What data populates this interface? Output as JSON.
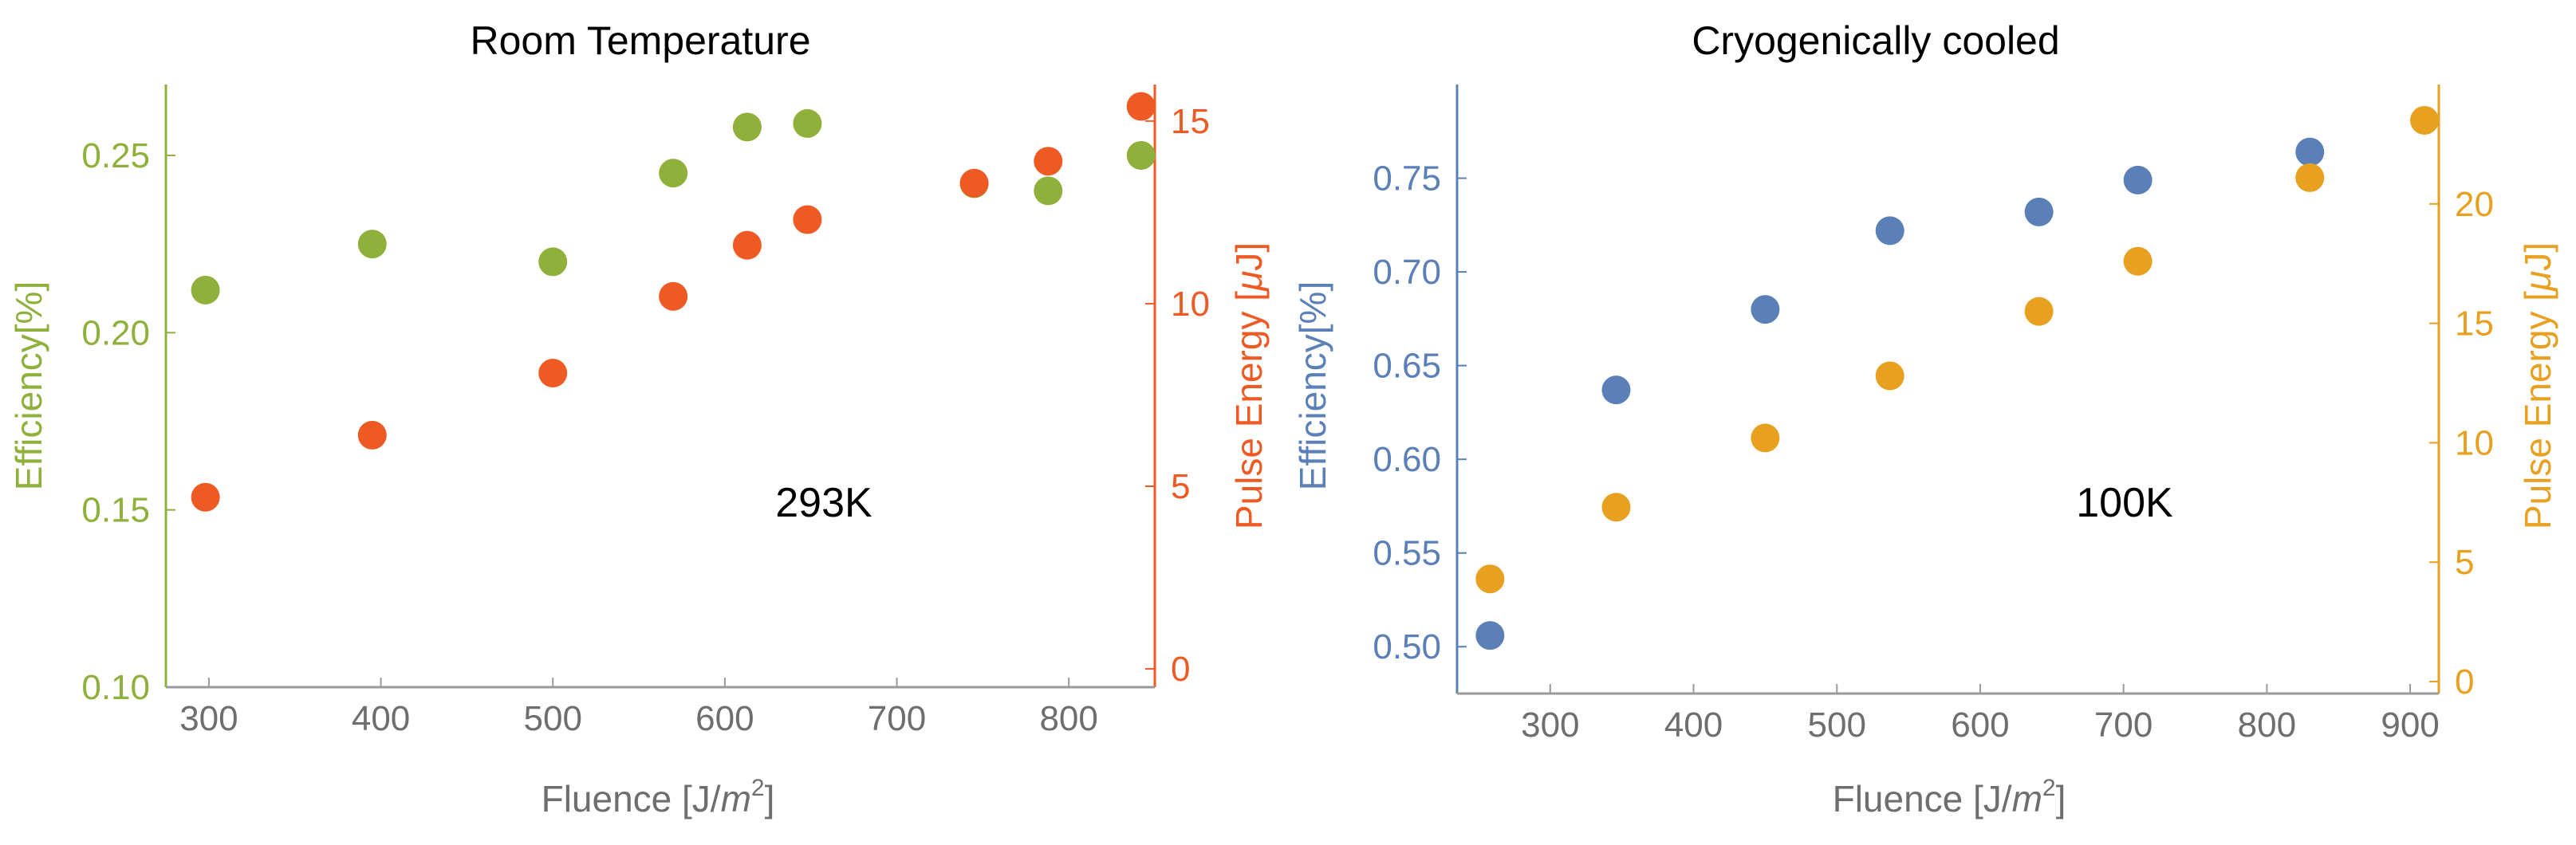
{
  "chart_data": [
    {
      "type": "scatter",
      "title": "Room Temperature",
      "annotation": "293K",
      "xlabel": "Fluence [J/",
      "xlabel_unit": "m",
      "xlabel_sup": "2",
      "xlabel_end": "]",
      "ylabel_left": "Efficiency[%]",
      "ylabel_right_pre": "Pulse Energy [",
      "ylabel_right_mu": "μ",
      "ylabel_right_post": "J]",
      "xlim": [
        275,
        850
      ],
      "ylim_left": [
        0.1,
        0.27
      ],
      "ylim_right": [
        -0.5,
        16
      ],
      "x_ticks": [
        300,
        400,
        500,
        600,
        700,
        800
      ],
      "x_tick_labels": [
        "300",
        "400",
        "500",
        "600",
        "700",
        "800"
      ],
      "y_left_ticks": [
        0.1,
        0.15,
        0.2,
        0.25
      ],
      "y_left_tick_labels": [
        "0.10",
        "0.15",
        "0.20",
        "0.25"
      ],
      "y_right_ticks": [
        0,
        5,
        10,
        15
      ],
      "y_right_tick_labels": [
        "0",
        "5",
        "10",
        "15"
      ],
      "left_color": "#8fb03a",
      "right_color": "#ee5a24",
      "series": [
        {
          "name": "Efficiency",
          "axis": "left",
          "color": "#8fb03a",
          "x": [
            298,
            395,
            500,
            570,
            613,
            648,
            745,
            788,
            842
          ],
          "y": [
            0.212,
            0.225,
            0.22,
            0.245,
            0.258,
            0.259,
            0.242,
            0.24,
            0.25
          ]
        },
        {
          "name": "Pulse Energy",
          "axis": "right",
          "color": "#ee5a24",
          "x": [
            298,
            395,
            500,
            570,
            613,
            648,
            745,
            788,
            842
          ],
          "y": [
            4.7,
            6.4,
            8.1,
            10.2,
            11.6,
            12.3,
            13.3,
            13.9,
            15.4
          ]
        }
      ]
    },
    {
      "type": "scatter",
      "title": "Cryogenically cooled",
      "annotation": "100K",
      "xlabel": "Fluence [J/",
      "xlabel_unit": "m",
      "xlabel_sup": "2",
      "xlabel_end": "]",
      "ylabel_left": "Efficiency[%]",
      "ylabel_right_pre": "Pulse Energy [",
      "ylabel_right_mu": "μ",
      "ylabel_right_post": "J]",
      "xlim": [
        235,
        920
      ],
      "ylim_left": [
        0.475,
        0.8
      ],
      "ylim_right": [
        -0.5,
        25
      ],
      "x_ticks": [
        300,
        400,
        500,
        600,
        700,
        800,
        900
      ],
      "x_tick_labels": [
        "300",
        "400",
        "500",
        "600",
        "700",
        "800",
        "900"
      ],
      "y_left_ticks": [
        0.5,
        0.55,
        0.6,
        0.65,
        0.7,
        0.75
      ],
      "y_left_tick_labels": [
        "0.50",
        "0.55",
        "0.60",
        "0.65",
        "0.70",
        "0.75"
      ],
      "y_right_ticks": [
        0,
        5,
        10,
        15,
        20
      ],
      "y_right_tick_labels": [
        "0",
        "5",
        "10",
        "15",
        "20"
      ],
      "left_color": "#5b80b8",
      "right_color": "#e8a020",
      "series": [
        {
          "name": "Efficiency",
          "axis": "left",
          "color": "#5b80b8",
          "x": [
            258,
            346,
            450,
            537,
            641,
            710,
            830
          ],
          "y": [
            0.506,
            0.637,
            0.68,
            0.722,
            0.732,
            0.749,
            0.764
          ]
        },
        {
          "name": "Pulse Energy",
          "axis": "right",
          "color": "#e8a020",
          "x": [
            258,
            346,
            450,
            537,
            641,
            710,
            830,
            910
          ],
          "y": [
            4.3,
            7.3,
            10.2,
            12.8,
            15.5,
            17.6,
            21.1,
            23.5
          ]
        }
      ]
    }
  ]
}
